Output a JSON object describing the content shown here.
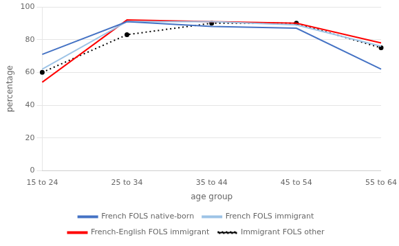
{
  "chart_data": {
    "type": "line",
    "categories": [
      "15 to 24",
      "25 to 34",
      "35 to 44",
      "45 to 54",
      "55 to 64"
    ],
    "series": [
      {
        "name": "French FOLS native-born",
        "color": "#4472c4",
        "values": [
          71,
          91,
          88,
          87,
          62
        ],
        "line_style": "solid"
      },
      {
        "name": "French FOLS immigrant",
        "color": "#9dc3e6",
        "values": [
          62,
          91,
          91,
          89,
          76
        ],
        "line_style": "solid"
      },
      {
        "name": "French-English FOLS immigrant",
        "color": "#ff0000",
        "values": [
          54,
          92,
          91,
          90,
          78
        ],
        "line_style": "solid"
      },
      {
        "name": "Immigrant FOLS other",
        "color": "#000000",
        "values": [
          60,
          83,
          90,
          90,
          75
        ],
        "line_style": "dotted",
        "marker": "circle"
      }
    ],
    "xlabel": "age group",
    "ylabel": "percentage",
    "ylim": [
      0,
      100
    ],
    "yticks": [
      0,
      20,
      40,
      60,
      80,
      100
    ],
    "grid": "y",
    "legend": "bottom"
  }
}
